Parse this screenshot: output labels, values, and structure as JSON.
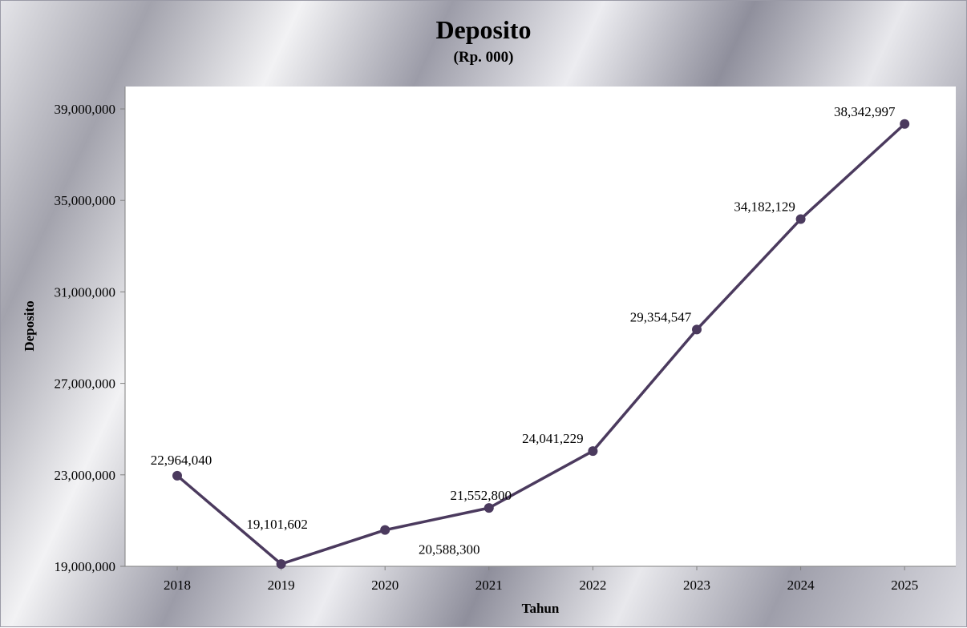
{
  "chart_data": {
    "type": "line",
    "title": "Deposito",
    "subtitle": "(Rp. 000)",
    "xlabel": "Tahun",
    "ylabel": "Deposito",
    "categories": [
      "2018",
      "2019",
      "2020",
      "2021",
      "2022",
      "2023",
      "2024",
      "2025"
    ],
    "series": [
      {
        "values": [
          22964040,
          19101602,
          20588300,
          21552800,
          24041229,
          29354547,
          34182129,
          38342997
        ],
        "data_labels": [
          "22,964,040",
          "19,101,602",
          "20,588,300",
          "21,552,800",
          "24,041,229",
          "29,354,547",
          "34,182,129",
          "38,342,997"
        ]
      }
    ],
    "ylim": [
      19000000,
      39000000
    ],
    "yticks": [
      19000000,
      23000000,
      27000000,
      31000000,
      35000000,
      39000000
    ],
    "ytick_labels": [
      "19,000,000",
      "23,000,000",
      "27,000,000",
      "31,000,000",
      "35,000,000",
      "39,000,000"
    ],
    "line_color": "#4b3a5e",
    "grid": false,
    "legend": "none"
  }
}
